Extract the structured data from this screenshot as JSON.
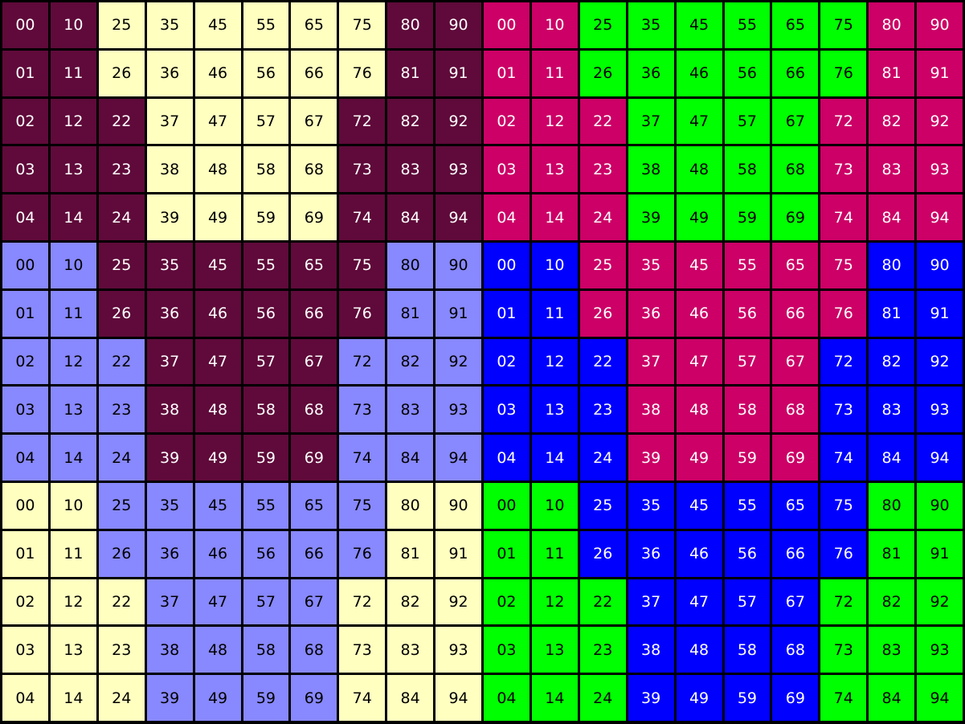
{
  "palette": {
    "M": {
      "bg": "#5f0a3a",
      "fg": "#ffffff"
    },
    "Y": {
      "bg": "#ffffc0",
      "fg": "#000000"
    },
    "P": {
      "bg": "#cc0066",
      "fg": "#ffffff"
    },
    "G": {
      "bg": "#00ff00",
      "fg": "#000000"
    },
    "L": {
      "bg": "#8888ff",
      "fg": "#000000"
    },
    "B": {
      "bg": "#0000ff",
      "fg": "#ffffff"
    }
  },
  "grid": {
    "rows": [
      {
        "colors": "MMYYYYYYMMPPGGGGGGPP",
        "labels": [
          "00",
          "10",
          "25",
          "35",
          "45",
          "55",
          "65",
          "75",
          "80",
          "90",
          "00",
          "10",
          "25",
          "35",
          "45",
          "55",
          "65",
          "75",
          "80",
          "90"
        ]
      },
      {
        "colors": "MMYYYYYYMMPPGGGGGGPP",
        "labels": [
          "01",
          "11",
          "26",
          "36",
          "46",
          "56",
          "66",
          "76",
          "81",
          "91",
          "01",
          "11",
          "26",
          "36",
          "46",
          "56",
          "66",
          "76",
          "81",
          "91"
        ]
      },
      {
        "colors": "MMMYYYYMMMPPPGGGGPPP",
        "labels": [
          "02",
          "12",
          "22",
          "37",
          "47",
          "57",
          "67",
          "72",
          "82",
          "92",
          "02",
          "12",
          "22",
          "37",
          "47",
          "57",
          "67",
          "72",
          "82",
          "92"
        ]
      },
      {
        "colors": "MMMYYYYMMMPPPGGGGPPP",
        "labels": [
          "03",
          "13",
          "23",
          "38",
          "48",
          "58",
          "68",
          "73",
          "83",
          "93",
          "03",
          "13",
          "23",
          "38",
          "48",
          "58",
          "68",
          "73",
          "83",
          "93"
        ]
      },
      {
        "colors": "MMMYYYYMMMPPPGGGGPPP",
        "labels": [
          "04",
          "14",
          "24",
          "39",
          "49",
          "59",
          "69",
          "74",
          "84",
          "94",
          "04",
          "14",
          "24",
          "39",
          "49",
          "59",
          "69",
          "74",
          "84",
          "94"
        ]
      },
      {
        "colors": "LLMMMMMMLLBBPPPPPPBB",
        "labels": [
          "00",
          "10",
          "25",
          "35",
          "45",
          "55",
          "65",
          "75",
          "80",
          "90",
          "00",
          "10",
          "25",
          "35",
          "45",
          "55",
          "65",
          "75",
          "80",
          "90"
        ]
      },
      {
        "colors": "LLMMMMMMLLBBPPPPPPBB",
        "labels": [
          "01",
          "11",
          "26",
          "36",
          "46",
          "56",
          "66",
          "76",
          "81",
          "91",
          "01",
          "11",
          "26",
          "36",
          "46",
          "56",
          "66",
          "76",
          "81",
          "91"
        ]
      },
      {
        "colors": "LLLMMMMLLLBBBPPPPBBB",
        "labels": [
          "02",
          "12",
          "22",
          "37",
          "47",
          "57",
          "67",
          "72",
          "82",
          "92",
          "02",
          "12",
          "22",
          "37",
          "47",
          "57",
          "67",
          "72",
          "82",
          "92"
        ]
      },
      {
        "colors": "LLLMMMMLLLBBBPPPPBBB",
        "labels": [
          "03",
          "13",
          "23",
          "38",
          "48",
          "58",
          "68",
          "73",
          "83",
          "93",
          "03",
          "13",
          "23",
          "38",
          "48",
          "58",
          "68",
          "73",
          "83",
          "93"
        ]
      },
      {
        "colors": "LLLMMMMLLLBBBPPPPBBB",
        "labels": [
          "04",
          "14",
          "24",
          "39",
          "49",
          "59",
          "69",
          "74",
          "84",
          "94",
          "04",
          "14",
          "24",
          "39",
          "49",
          "59",
          "69",
          "74",
          "84",
          "94"
        ]
      },
      {
        "colors": "YYLLLLLLYYGGBBBBBBGG",
        "labels": [
          "00",
          "10",
          "25",
          "35",
          "45",
          "55",
          "65",
          "75",
          "80",
          "90",
          "00",
          "10",
          "25",
          "35",
          "45",
          "55",
          "65",
          "75",
          "80",
          "90"
        ]
      },
      {
        "colors": "YYLLLLLLYYGGBBBBBBGG",
        "labels": [
          "01",
          "11",
          "26",
          "36",
          "46",
          "56",
          "66",
          "76",
          "81",
          "91",
          "01",
          "11",
          "26",
          "36",
          "46",
          "56",
          "66",
          "76",
          "81",
          "91"
        ]
      },
      {
        "colors": "YYYLLLLYYYGGGBBBBGGG",
        "labels": [
          "02",
          "12",
          "22",
          "37",
          "47",
          "57",
          "67",
          "72",
          "82",
          "92",
          "02",
          "12",
          "22",
          "37",
          "47",
          "57",
          "67",
          "72",
          "82",
          "92"
        ]
      },
      {
        "colors": "YYYLLLLYYYGGGBBBBGGG",
        "labels": [
          "03",
          "13",
          "23",
          "38",
          "48",
          "58",
          "68",
          "73",
          "83",
          "93",
          "03",
          "13",
          "23",
          "38",
          "48",
          "58",
          "68",
          "73",
          "83",
          "93"
        ]
      },
      {
        "colors": "YYYLLLLYYYGGGBBBBGGG",
        "labels": [
          "04",
          "14",
          "24",
          "39",
          "49",
          "59",
          "69",
          "74",
          "84",
          "94",
          "04",
          "14",
          "24",
          "39",
          "49",
          "59",
          "69",
          "74",
          "84",
          "94"
        ]
      }
    ]
  }
}
